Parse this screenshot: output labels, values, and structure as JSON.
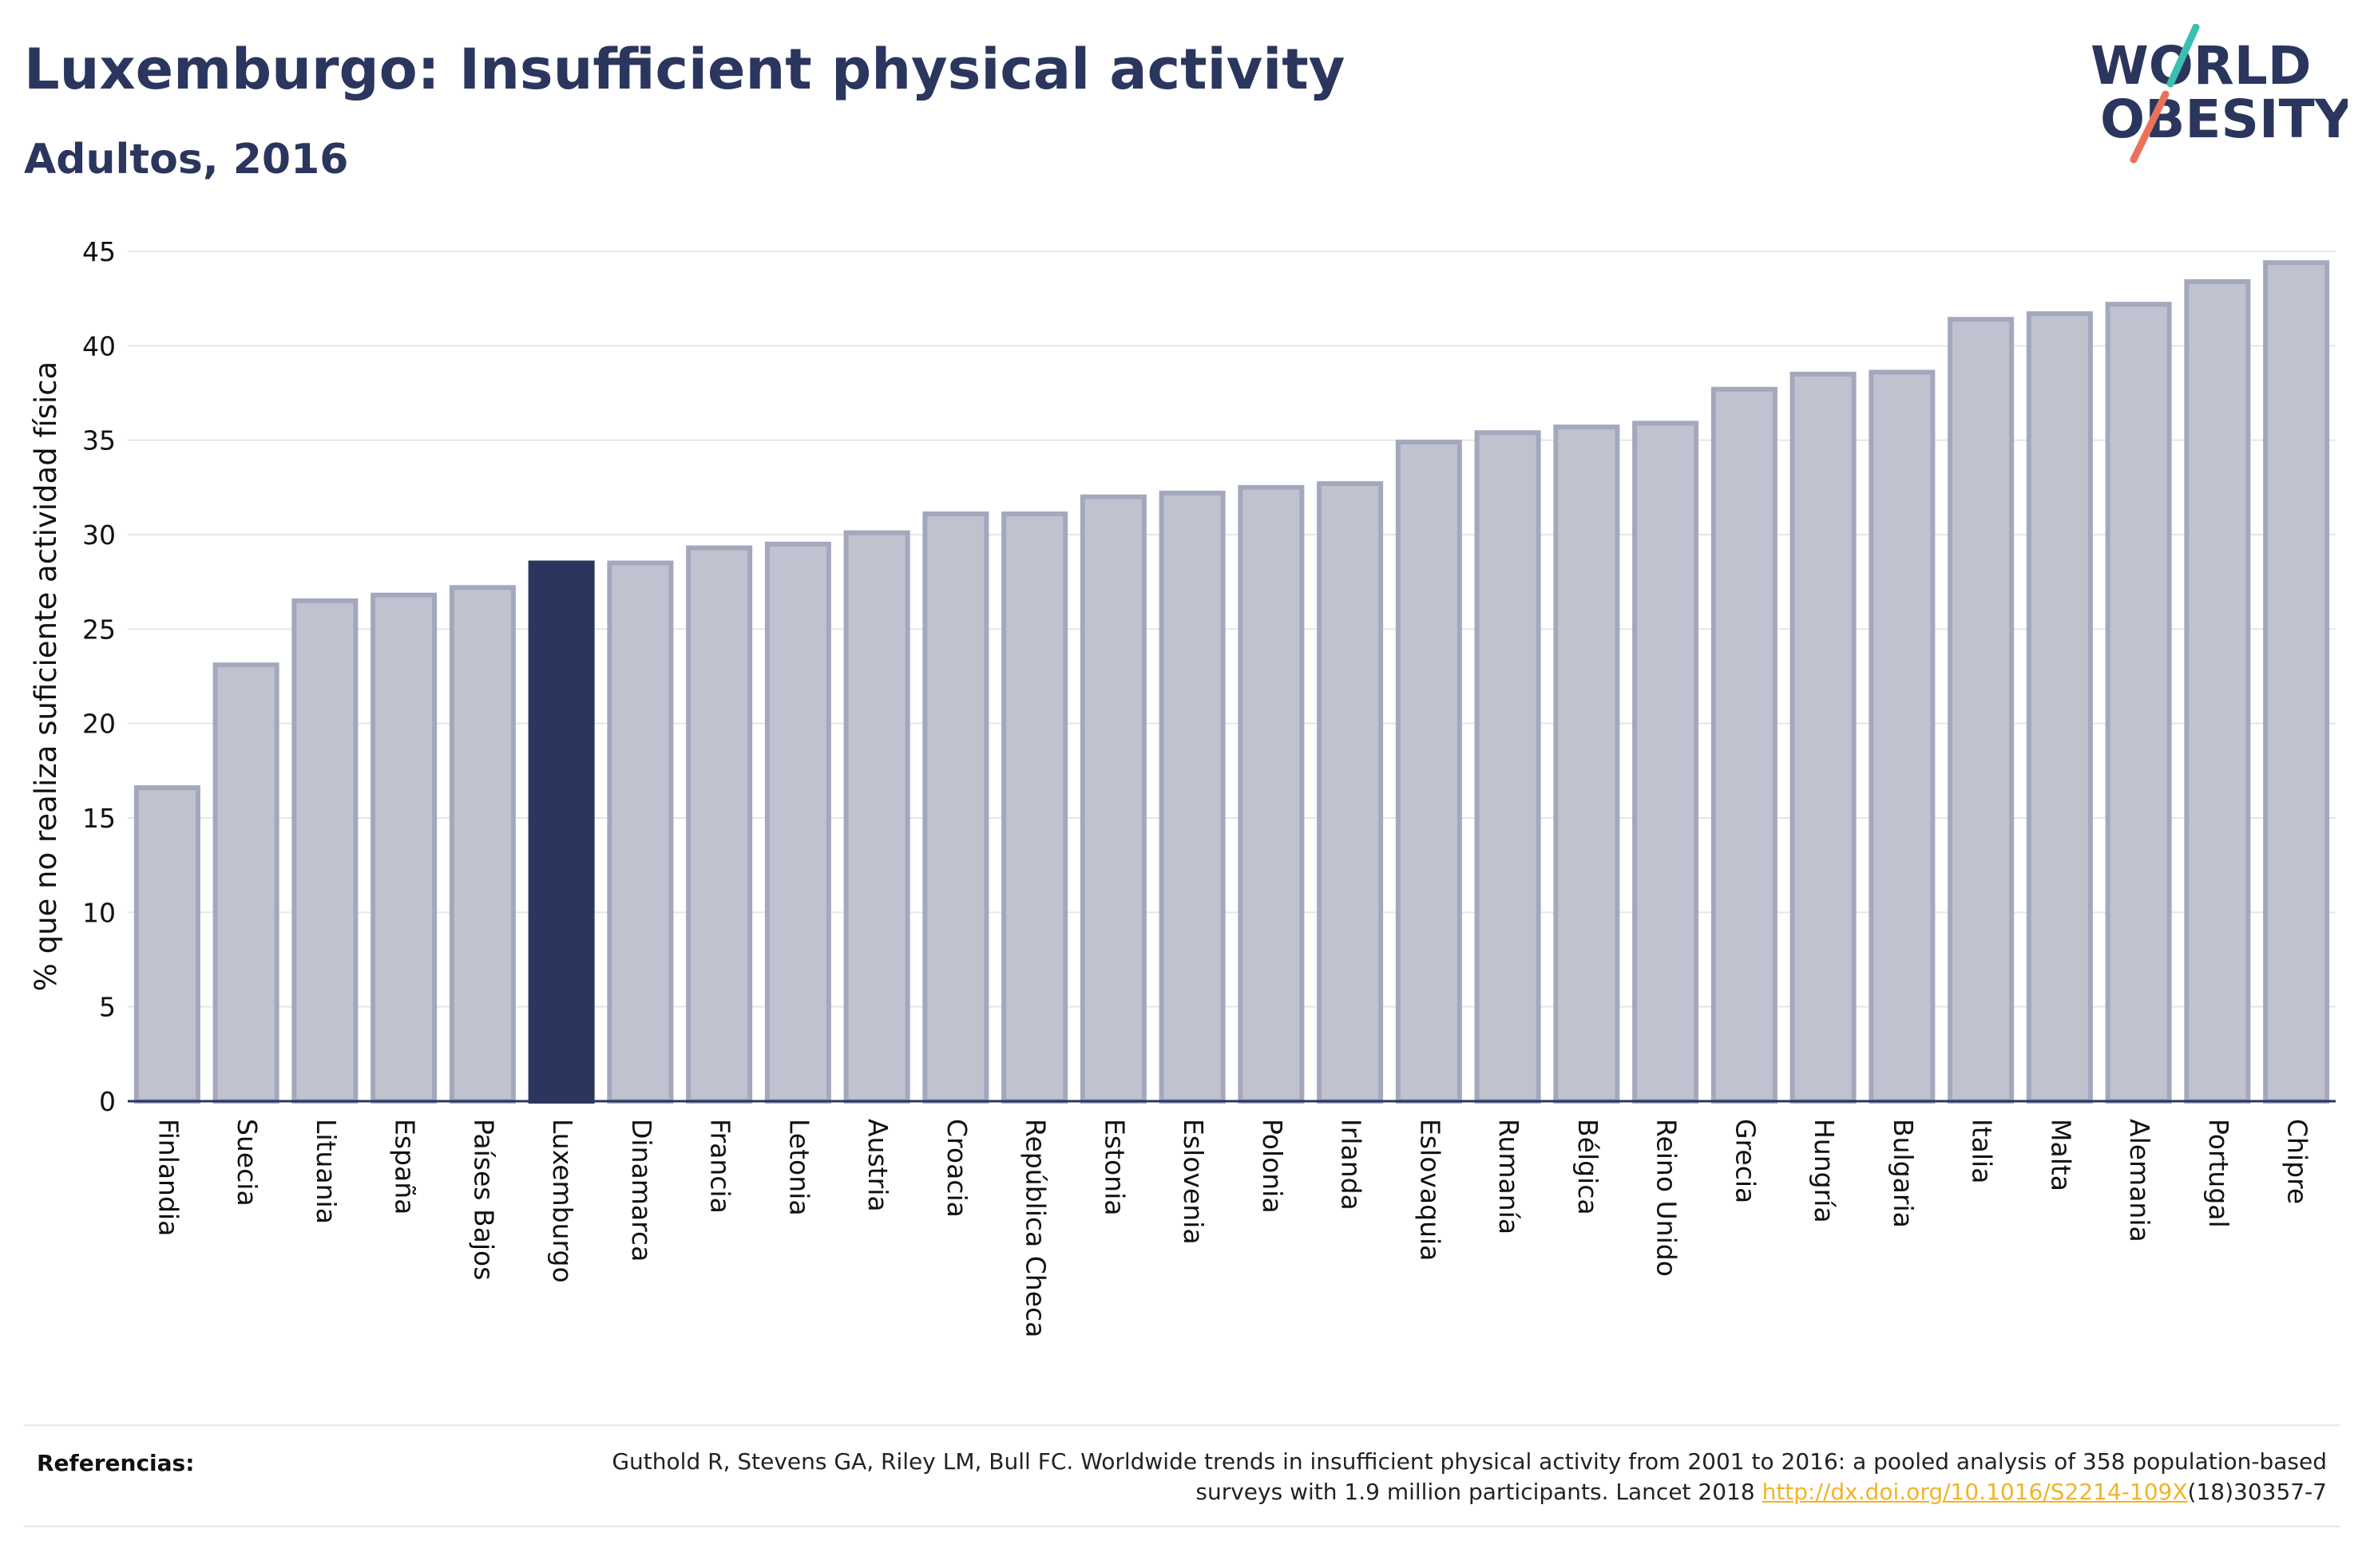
{
  "header": {
    "title": "Luxemburgo: Insufficient physical activity",
    "subtitle": "Adultos, 2016"
  },
  "logo": {
    "line1": "WORLD",
    "line2": "OBESITY",
    "colors": {
      "text": "#2b365e",
      "slash_top": "#3bbfb0",
      "slash_bottom": "#e8735a"
    }
  },
  "chart_data": {
    "type": "bar",
    "title": "Luxemburgo: Insufficient physical activity",
    "subtitle": "Adultos, 2016",
    "ylabel": "% que no realiza suficiente actividad física",
    "xlabel": "",
    "ylim": [
      0,
      45
    ],
    "yticks": [
      0,
      5,
      10,
      15,
      20,
      25,
      30,
      35,
      40,
      45
    ],
    "grid": true,
    "highlight": "Luxemburgo",
    "categories": [
      "Finlandia",
      "Suecia",
      "Lituania",
      "España",
      "Países Bajos",
      "Luxemburgo",
      "Dinamarca",
      "Francia",
      "Letonia",
      "Austria",
      "Croacia",
      "República Checa",
      "Estonia",
      "Eslovenia",
      "Polonia",
      "Irlanda",
      "Eslovaquia",
      "Rumanía",
      "Bélgica",
      "Reino Unido",
      "Grecia",
      "Hungría",
      "Bulgaria",
      "Italia",
      "Malta",
      "Alemania",
      "Portugal",
      "Chipre"
    ],
    "values": [
      16.6,
      23.1,
      26.5,
      26.8,
      27.2,
      28.5,
      28.5,
      29.3,
      29.5,
      30.1,
      31.1,
      31.1,
      32.0,
      32.2,
      32.5,
      32.7,
      34.9,
      35.4,
      35.7,
      35.9,
      37.7,
      38.5,
      38.6,
      41.4,
      41.7,
      42.2,
      43.4,
      44.4
    ],
    "colors": {
      "highlight": "#2b365e",
      "default_fill": "#c0c3cf",
      "default_stroke": "#a3a8bd"
    }
  },
  "references": {
    "label": "Referencias:",
    "text_before": "Guthold R, Stevens GA, Riley LM, Bull FC. Worldwide trends in insufficient physical activity from 2001 to 2016: a pooled analysis of 358 population-based surveys with 1.9 million participants. Lancet 2018 ",
    "link": "http://dx.doi.org/10.1016/S2214-109X",
    "text_after": "(18)30357-7"
  }
}
